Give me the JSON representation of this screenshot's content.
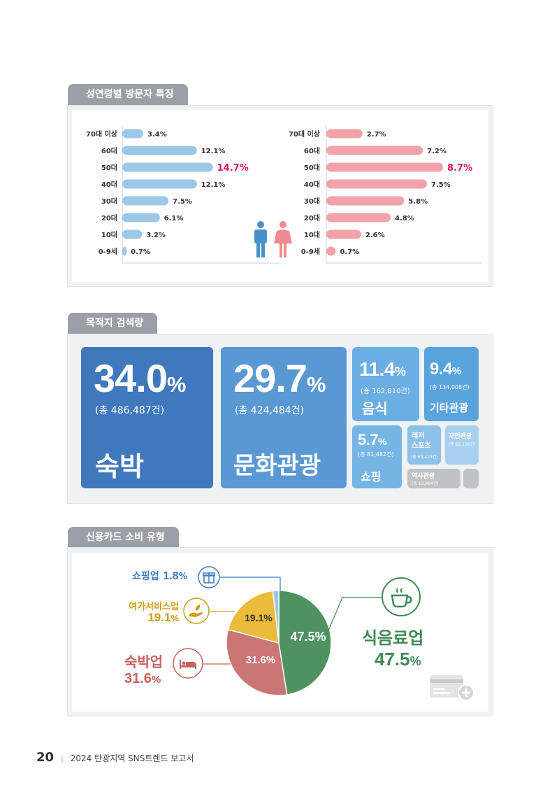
{
  "sections": {
    "gender_age": "성연령별 방문자 특징",
    "search": "목적지 검색량",
    "card": "신용카드 소비 유형"
  },
  "age_labels": [
    "70대 이상",
    "60대",
    "50대",
    "40대",
    "30대",
    "20대",
    "10대",
    "0-9세"
  ],
  "chart_data": [
    {
      "type": "bar",
      "categories": [
        "70대 이상",
        "60대",
        "50대",
        "40대",
        "30대",
        "20대",
        "10대",
        "0-9세"
      ],
      "values": [
        3.4,
        12.1,
        14.7,
        12.1,
        7.5,
        6.1,
        3.2,
        0.7
      ],
      "labels": [
        "3.4%",
        "12.1%",
        "14.7%",
        "12.1%",
        "7.5%",
        "6.1%",
        "3.2%",
        "0.7%"
      ],
      "highlight_index": 2,
      "color": "#9dc7e8",
      "highlight_color": "#d9165f"
    },
    {
      "type": "bar",
      "categories": [
        "70대 이상",
        "60대",
        "50대",
        "40대",
        "30대",
        "20대",
        "10대",
        "0-9세"
      ],
      "values": [
        2.7,
        7.2,
        8.7,
        7.5,
        5.8,
        4.8,
        2.6,
        0.7
      ],
      "labels": [
        "2.7%",
        "7.2%",
        "8.7%",
        "7.5%",
        "5.8%",
        "4.8%",
        "2.6%",
        "0.7%"
      ],
      "highlight_index": 2,
      "color": "#f2a3aa",
      "highlight_color": "#d9165f"
    },
    {
      "type": "pie",
      "categories": [
        "식음료업",
        "숙박업",
        "여가서비스업",
        "쇼핑업"
      ],
      "values": [
        47.5,
        31.6,
        19.1,
        1.8
      ],
      "labels": [
        "47.5%",
        "31.6%",
        "19.1%",
        ""
      ],
      "colors": [
        "#4e9260",
        "#c97674",
        "#ebbb3c",
        "#9fc3e3"
      ]
    }
  ],
  "treemap": {
    "accommodation": {
      "pct": "34.0",
      "unit": "%",
      "count": "(총 486,487건)",
      "name": "숙박"
    },
    "culture": {
      "pct": "29.7",
      "unit": "%",
      "count": "(총 424,484건)",
      "name": "문화관광"
    },
    "food": {
      "pct": "11.4",
      "unit": "%",
      "count": "(총 162,810건)",
      "name": "음식"
    },
    "other": {
      "pct": "9.4",
      "unit": "%",
      "count": "(총 134,008건)",
      "name": "기타관광"
    },
    "shopping": {
      "pct": "5.7",
      "unit": "%",
      "count": "(총 81,482건)",
      "name": "쇼핑"
    },
    "leisure": {
      "name1": "레저",
      "name2": "스포츠",
      "count": "(총 63,423건)"
    },
    "nature": {
      "name": "자연관광",
      "count": "(총 62,138건)"
    },
    "history": {
      "name": "역사관광",
      "count": "(총 13,964건)"
    }
  },
  "card": {
    "shopping": {
      "name": "쇼핑업",
      "pct": "1.8",
      "unit": "%"
    },
    "leisure": {
      "name": "여가서비스업",
      "pct": "19.1",
      "unit": "%"
    },
    "lodging": {
      "name": "숙박업",
      "pct": "31.6",
      "unit": "%"
    },
    "food": {
      "name": "식음료업",
      "pct": "47.5",
      "unit": "%"
    }
  },
  "icons": {
    "male": "male-icon",
    "female": "female-icon",
    "gift": "gift-icon",
    "leisure": "hand-leaf-icon",
    "bed": "bed-icon",
    "coffee": "coffee-cup-icon",
    "card": "credit-card-icon"
  },
  "footer": {
    "page": "20",
    "title": "2024 탄광지역 SNS트렌드 보고서"
  }
}
